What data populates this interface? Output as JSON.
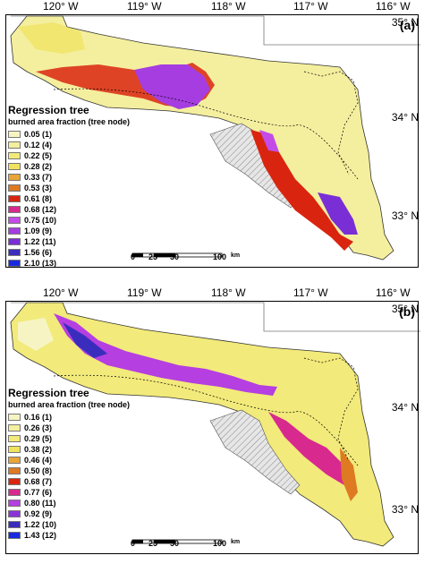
{
  "panels": [
    {
      "label": "(a)",
      "lon_labels": [
        "120° W",
        "119° W",
        "118° W",
        "117° W",
        "116° W"
      ],
      "lat_labels": [
        "35° N",
        "34° N",
        "33° N"
      ],
      "legend": {
        "title": "Regression tree",
        "subtitle": "burned area fraction (tree node)",
        "items": [
          {
            "label": "0.05 (1)",
            "color": "#f7f4c4"
          },
          {
            "label": "0.12 (4)",
            "color": "#f4ef9e"
          },
          {
            "label": "0.22 (5)",
            "color": "#f2ea7a"
          },
          {
            "label": "0.28 (2)",
            "color": "#efe35c"
          },
          {
            "label": "0.33 (7)",
            "color": "#e8a53a"
          },
          {
            "label": "0.53 (3)",
            "color": "#de7a22"
          },
          {
            "label": "0.61 (8)",
            "color": "#d9250f"
          },
          {
            "label": "0.68 (12)",
            "color": "#d82a8e"
          },
          {
            "label": "0.75 (10)",
            "color": "#c34ce8"
          },
          {
            "label": "1.09 (9)",
            "color": "#a53de0"
          },
          {
            "label": "1.22 (11)",
            "color": "#7a2fd6"
          },
          {
            "label": "1.56 (6)",
            "color": "#3a2dbd"
          },
          {
            "label": "2.10 (13)",
            "color": "#1a2ae0"
          }
        ]
      },
      "scale": {
        "ticks": [
          "0",
          "25",
          "50",
          "100"
        ],
        "unit": "km"
      }
    },
    {
      "label": "(b)",
      "lon_labels": [
        "120° W",
        "119° W",
        "118° W",
        "117° W",
        "116° W"
      ],
      "lat_labels": [
        "35° N",
        "34° N",
        "33° N"
      ],
      "legend": {
        "title": "Regression tree",
        "subtitle": "burned area fraction (tree node)",
        "items": [
          {
            "label": "0.16 (1)",
            "color": "#f7f4c4"
          },
          {
            "label": "0.26 (3)",
            "color": "#f4ef9e"
          },
          {
            "label": "0.29 (5)",
            "color": "#f2ea7a"
          },
          {
            "label": "0.38 (2)",
            "color": "#efe35c"
          },
          {
            "label": "0.46 (4)",
            "color": "#e8a53a"
          },
          {
            "label": "0.50 (8)",
            "color": "#de7a22"
          },
          {
            "label": "0.68 (7)",
            "color": "#d9250f"
          },
          {
            "label": "0.77 (6)",
            "color": "#d82a8e"
          },
          {
            "label": "0.80 (11)",
            "color": "#b53fe0"
          },
          {
            "label": "0.92 (9)",
            "color": "#8a35d8"
          },
          {
            "label": "1.22 (10)",
            "color": "#3a2dbd"
          },
          {
            "label": "1.43 (12)",
            "color": "#1a2ae0"
          }
        ]
      },
      "scale": {
        "ticks": [
          "0",
          "25",
          "50",
          "100"
        ],
        "unit": "km"
      }
    }
  ]
}
